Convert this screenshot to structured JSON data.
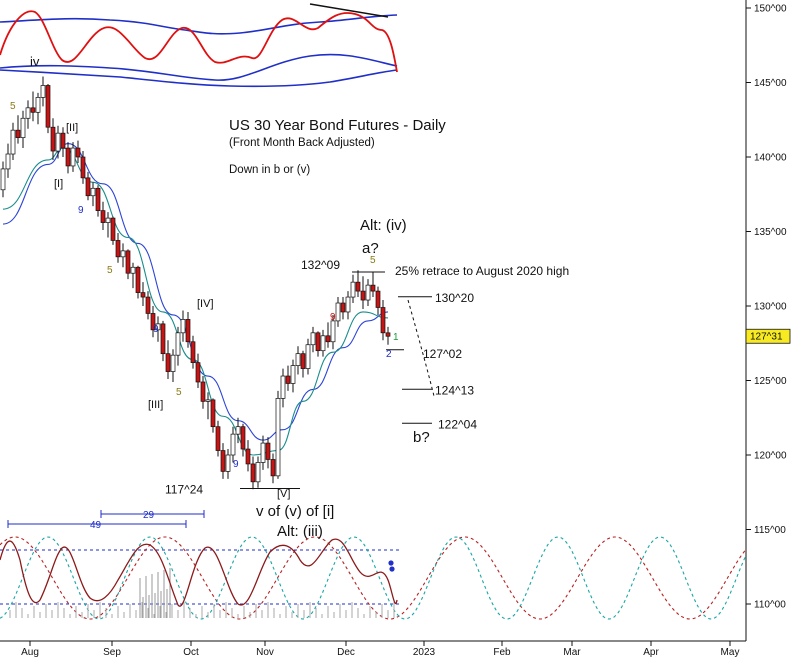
{
  "chart_data": {
    "type": "candlestick",
    "title": "US 30 Year Bond Futures - Daily",
    "subtitle": "(Front Month Back Adjusted)",
    "note": "Down in b or (v)",
    "x_tick_labels": [
      "Aug",
      "Sep",
      "Oct",
      "Nov",
      "Dec",
      "2023",
      "Feb",
      "Mar",
      "Apr",
      "May"
    ],
    "y_tick_labels": [
      "150^00",
      "145^00",
      "140^00",
      "135^00",
      "130^00",
      "125^00",
      "120^00",
      "115^00",
      "110^00"
    ],
    "y_range": [
      109,
      151
    ],
    "last_price": "127^31",
    "colors": {
      "up": "#ffffff",
      "down": "#c81414",
      "ma_blue": "#2b44d6",
      "ma_teal": "#1a8c8c",
      "osc_red": "#e01010",
      "osc_blue": "#1f2fc8",
      "cycle_teal": "#1aa6a6",
      "cycle_red": "#b82020",
      "cycle_indicator": "#8c1a1a",
      "price_box": "#f7ea22"
    },
    "price_levels": [
      {
        "label": "132^09",
        "value": 132.28
      },
      {
        "label": "130^20",
        "value": 130.62
      },
      {
        "label": "127^02",
        "value": 127.06
      },
      {
        "label": "124^13",
        "value": 124.41
      },
      {
        "label": "122^04",
        "value": 122.13
      },
      {
        "label": "117^24",
        "value": 117.75
      }
    ],
    "annotations": {
      "alt_iv": "Alt: (iv)",
      "a_q": "a?",
      "retrace": "25% retrace to August 2020 high",
      "b_q": "b?",
      "v_of": "v of (v) of [i]",
      "alt_iii": "Alt: (iii)",
      "iv_small": "iv",
      "w_II": "[II]",
      "w_I": "[I]",
      "w_IV": "[IV]",
      "w_III": "[III]",
      "w_V": "[V]",
      "c49": "49",
      "c29": "29"
    },
    "sequential_counts": [
      {
        "label": "5",
        "color": "#8a7a14"
      },
      {
        "label": "9",
        "color": "#1f2fc8"
      },
      {
        "label": "5",
        "color": "#8a7a14"
      },
      {
        "label": "9",
        "color": "#1f2fc8"
      },
      {
        "label": "5",
        "color": "#8a7a14"
      },
      {
        "label": "9",
        "color": "#1f2fc8"
      },
      {
        "label": "9",
        "color": "#d01414"
      },
      {
        "label": "5",
        "color": "#8a7a14"
      },
      {
        "label": "2",
        "color": "#1f2fc8"
      },
      {
        "label": "1",
        "color": "#1a9a3a"
      }
    ],
    "ohlc": [
      [
        0,
        137.8,
        139.7,
        137.3,
        139.2
      ],
      [
        1,
        139.2,
        140.9,
        138.6,
        140.2
      ],
      [
        2,
        140.2,
        142.3,
        139.8,
        141.8
      ],
      [
        3,
        141.8,
        142.8,
        140.9,
        141.3
      ],
      [
        4,
        141.3,
        143.1,
        140.6,
        142.6
      ],
      [
        5,
        142.6,
        143.8,
        141.9,
        143.3
      ],
      [
        6,
        143.3,
        144.4,
        142.4,
        143.0
      ],
      [
        7,
        143.0,
        144.3,
        142.2,
        144.0
      ],
      [
        8,
        144.0,
        145.4,
        143.4,
        144.8
      ],
      [
        9,
        144.8,
        144.9,
        141.6,
        142.0
      ],
      [
        10,
        142.0,
        142.6,
        139.8,
        140.4
      ],
      [
        11,
        140.4,
        142.1,
        139.9,
        141.6
      ],
      [
        12,
        141.6,
        142.0,
        140.0,
        140.6
      ],
      [
        13,
        140.6,
        141.0,
        138.9,
        139.4
      ],
      [
        14,
        139.4,
        141.0,
        139.0,
        140.6
      ],
      [
        15,
        140.6,
        141.1,
        139.6,
        140.0
      ],
      [
        16,
        140.0,
        140.4,
        138.2,
        138.6
      ],
      [
        17,
        138.6,
        139.0,
        137.1,
        137.4
      ],
      [
        18,
        137.4,
        138.3,
        136.7,
        137.9
      ],
      [
        19,
        137.9,
        138.1,
        136.0,
        136.4
      ],
      [
        20,
        136.4,
        137.0,
        135.1,
        135.6
      ],
      [
        21,
        135.6,
        136.3,
        134.6,
        135.9
      ],
      [
        22,
        135.9,
        136.0,
        134.1,
        134.4
      ],
      [
        23,
        134.4,
        134.9,
        132.9,
        133.3
      ],
      [
        24,
        133.3,
        134.2,
        132.6,
        133.7
      ],
      [
        25,
        133.7,
        133.8,
        131.8,
        132.2
      ],
      [
        26,
        132.2,
        132.9,
        131.2,
        132.6
      ],
      [
        27,
        132.6,
        132.7,
        130.5,
        130.9
      ],
      [
        28,
        130.9,
        131.6,
        130.0,
        130.6
      ],
      [
        29,
        130.6,
        131.0,
        129.1,
        129.5
      ],
      [
        30,
        129.5,
        130.0,
        127.9,
        128.4
      ],
      [
        31,
        128.4,
        129.3,
        127.6,
        128.8
      ],
      [
        32,
        128.8,
        129.0,
        126.3,
        126.8
      ],
      [
        33,
        126.8,
        127.7,
        125.1,
        125.6
      ],
      [
        34,
        125.6,
        127.1,
        124.9,
        126.7
      ],
      [
        35,
        126.7,
        128.6,
        126.0,
        128.2
      ],
      [
        36,
        128.2,
        129.7,
        127.6,
        129.1
      ],
      [
        37,
        129.1,
        129.6,
        127.2,
        127.6
      ],
      [
        38,
        127.6,
        128.0,
        125.8,
        126.2
      ],
      [
        39,
        126.2,
        126.8,
        124.5,
        124.9
      ],
      [
        40,
        124.9,
        125.3,
        123.1,
        123.6
      ],
      [
        41,
        123.6,
        124.2,
        122.4,
        123.7
      ],
      [
        42,
        123.7,
        123.8,
        121.5,
        121.9
      ],
      [
        43,
        121.9,
        122.3,
        119.9,
        120.3
      ],
      [
        44,
        120.3,
        120.8,
        118.4,
        118.9
      ],
      [
        45,
        118.9,
        120.4,
        118.4,
        120.0
      ],
      [
        46,
        120.0,
        121.9,
        119.5,
        121.4
      ],
      [
        47,
        121.4,
        122.5,
        120.8,
        121.9
      ],
      [
        48,
        121.9,
        122.1,
        119.9,
        120.4
      ],
      [
        49,
        120.4,
        121.0,
        118.9,
        119.4
      ],
      [
        50,
        119.4,
        119.9,
        117.7,
        118.2
      ],
      [
        51,
        118.2,
        119.9,
        117.8,
        119.5
      ],
      [
        52,
        119.5,
        121.3,
        119.0,
        120.8
      ],
      [
        53,
        120.8,
        121.2,
        119.1,
        119.7
      ],
      [
        54,
        119.7,
        120.1,
        118.1,
        118.6
      ],
      [
        55,
        118.6,
        124.3,
        118.4,
        123.8
      ],
      [
        56,
        123.8,
        125.8,
        123.2,
        125.3
      ],
      [
        57,
        125.3,
        126.0,
        124.3,
        124.8
      ],
      [
        58,
        124.8,
        126.4,
        124.2,
        126.0
      ],
      [
        59,
        126.0,
        127.3,
        125.4,
        126.8
      ],
      [
        60,
        126.8,
        127.0,
        125.2,
        125.8
      ],
      [
        61,
        125.8,
        127.8,
        125.4,
        127.4
      ],
      [
        62,
        127.4,
        128.6,
        126.9,
        128.2
      ],
      [
        63,
        128.2,
        128.3,
        126.6,
        127.0
      ],
      [
        64,
        127.0,
        128.4,
        126.6,
        128.0
      ],
      [
        65,
        128.0,
        128.9,
        127.2,
        127.6
      ],
      [
        66,
        127.6,
        129.4,
        127.1,
        129.0
      ],
      [
        67,
        129.0,
        130.6,
        128.6,
        130.2
      ],
      [
        68,
        130.2,
        130.6,
        129.1,
        129.6
      ],
      [
        69,
        129.6,
        131.0,
        129.1,
        130.6
      ],
      [
        70,
        130.6,
        132.1,
        130.2,
        131.6
      ],
      [
        71,
        131.6,
        132.4,
        130.6,
        131.0
      ],
      [
        72,
        131.0,
        132.0,
        129.8,
        130.4
      ],
      [
        73,
        130.4,
        131.8,
        130.0,
        131.4
      ],
      [
        74,
        131.4,
        132.3,
        130.6,
        131.0
      ],
      [
        75,
        131.0,
        131.3,
        129.4,
        129.9
      ],
      [
        76,
        129.9,
        130.4,
        127.7,
        128.2
      ],
      [
        77,
        128.2,
        128.6,
        127.4,
        127.97
      ]
    ],
    "ma_fast": [
      [
        0,
        136.5
      ],
      [
        9,
        139.8
      ],
      [
        12,
        140.6
      ],
      [
        18,
        138.3
      ],
      [
        25,
        134.6
      ],
      [
        32,
        129.6
      ],
      [
        38,
        126.4
      ],
      [
        44,
        122.6
      ],
      [
        50,
        120.0
      ],
      [
        55,
        120.3
      ],
      [
        60,
        123.6
      ],
      [
        66,
        126.9
      ],
      [
        72,
        129.6
      ],
      [
        77,
        129.2
      ]
    ],
    "ma_slow": [
      [
        0,
        135.5
      ],
      [
        9,
        139.5
      ],
      [
        13,
        140.9
      ],
      [
        20,
        138.2
      ],
      [
        27,
        134.2
      ],
      [
        34,
        129.4
      ],
      [
        41,
        125.3
      ],
      [
        47,
        122.3
      ],
      [
        52,
        121.0
      ],
      [
        56,
        121.7
      ],
      [
        62,
        124.4
      ],
      [
        68,
        127.2
      ],
      [
        73,
        129.0
      ],
      [
        77,
        129.6
      ]
    ]
  }
}
